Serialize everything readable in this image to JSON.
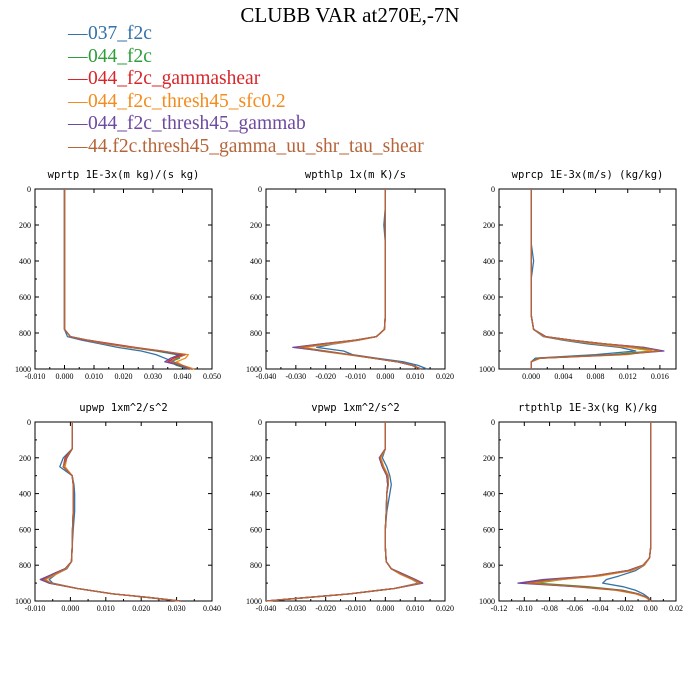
{
  "title": "CLUBB VAR at270E,-7N",
  "legend": [
    {
      "label": "037_f2c",
      "color": "#3572a8"
    },
    {
      "label": "044_f2c",
      "color": "#2e9e3a"
    },
    {
      "label": "044_f2c_gammashear",
      "color": "#d7262b"
    },
    {
      "label": "044_f2c_thresh45_sfc0.2",
      "color": "#f28c1c"
    },
    {
      "label": "044_f2c_thresh45_gammab",
      "color": "#6d4aa0"
    },
    {
      "label": "44.f2c.thresh45_gamma_uu_shr_tau_shear",
      "color": "#b5653a"
    }
  ],
  "chart_data": [
    {
      "type": "line",
      "title": "wprtp  1E-3x(m kg)/(s kg)",
      "xlim": [
        -0.01,
        0.05
      ],
      "ylim": [
        1000,
        0
      ],
      "xticks": [
        "-0.010",
        "0.000",
        "0.010",
        "0.020",
        "0.030",
        "0.040",
        "0.050"
      ],
      "yticks": [
        "0",
        "200",
        "400",
        "600",
        "800",
        "1000"
      ],
      "y": [
        0,
        100,
        200,
        300,
        400,
        500,
        600,
        700,
        780,
        820,
        840,
        860,
        880,
        900,
        920,
        940,
        960,
        980,
        1000
      ],
      "series": [
        {
          "values": [
            0,
            0,
            0,
            0,
            0,
            0,
            0,
            0,
            0,
            0.001,
            0.006,
            0.012,
            0.018,
            0.026,
            0.031,
            0.034,
            0.037,
            0.04,
            0.041
          ]
        },
        {
          "values": [
            0,
            0,
            0,
            0,
            0,
            0,
            0,
            0,
            0,
            0.002,
            0.008,
            0.015,
            0.022,
            0.031,
            0.038,
            0.039,
            0.036,
            0.038,
            0.042
          ]
        },
        {
          "values": [
            0,
            0,
            0,
            0,
            0,
            0,
            0,
            0,
            0,
            0.002,
            0.008,
            0.016,
            0.024,
            0.033,
            0.04,
            0.037,
            0.035,
            0.039,
            0.043
          ]
        },
        {
          "values": [
            0,
            0,
            0,
            0,
            0,
            0,
            0,
            0,
            0,
            0.002,
            0.007,
            0.014,
            0.022,
            0.032,
            0.042,
            0.041,
            0.038,
            0.04,
            0.044
          ]
        },
        {
          "values": [
            0,
            0,
            0,
            0,
            0,
            0,
            0,
            0,
            0,
            0.002,
            0.007,
            0.015,
            0.023,
            0.032,
            0.039,
            0.036,
            0.034,
            0.039,
            0.042
          ]
        },
        {
          "values": [
            0,
            0,
            0,
            0,
            0,
            0,
            0,
            0,
            0,
            0.002,
            0.008,
            0.015,
            0.023,
            0.033,
            0.041,
            0.038,
            0.036,
            0.04,
            0.043
          ]
        }
      ]
    },
    {
      "type": "line",
      "title": "wpthlp  1x(m K)/s",
      "xlim": [
        -0.04,
        0.02
      ],
      "ylim": [
        1000,
        0
      ],
      "xticks": [
        "-0.040",
        "-0.030",
        "-0.020",
        "-0.010",
        "0.000",
        "0.010",
        "0.020"
      ],
      "yticks": [
        "0",
        "200",
        "400",
        "600",
        "800",
        "1000"
      ],
      "y": [
        0,
        100,
        200,
        300,
        400,
        500,
        600,
        700,
        780,
        820,
        840,
        860,
        880,
        900,
        920,
        940,
        960,
        980,
        1000
      ],
      "series": [
        {
          "values": [
            0,
            0,
            -0.0005,
            0,
            0,
            0,
            0,
            0,
            -0.0003,
            -0.003,
            -0.009,
            -0.017,
            -0.023,
            -0.014,
            -0.011,
            -0.003,
            0.006,
            0.011,
            0.014
          ]
        },
        {
          "values": [
            0,
            0,
            0,
            0,
            0,
            0,
            0,
            0,
            -0.0003,
            -0.003,
            -0.01,
            -0.02,
            -0.028,
            -0.02,
            -0.012,
            -0.004,
            0.004,
            0.009,
            0.012
          ]
        },
        {
          "values": [
            0,
            0,
            0,
            0,
            0,
            0,
            0,
            0,
            -0.0003,
            -0.003,
            -0.01,
            -0.021,
            -0.03,
            -0.021,
            -0.012,
            -0.004,
            0.004,
            0.009,
            0.012
          ]
        },
        {
          "values": [
            0,
            0,
            0,
            0,
            0,
            0,
            0,
            0,
            -0.0003,
            -0.003,
            -0.009,
            -0.018,
            -0.027,
            -0.022,
            -0.013,
            -0.004,
            0.004,
            0.009,
            0.012
          ]
        },
        {
          "values": [
            0,
            0,
            0,
            0,
            0,
            0,
            0,
            0,
            -0.0003,
            -0.003,
            -0.01,
            -0.021,
            -0.031,
            -0.021,
            -0.012,
            -0.004,
            0.004,
            0.009,
            0.012
          ]
        },
        {
          "values": [
            0,
            0,
            0,
            0,
            0,
            0,
            0,
            0,
            -0.0003,
            -0.003,
            -0.01,
            -0.02,
            -0.029,
            -0.02,
            -0.012,
            -0.004,
            0.004,
            0.009,
            0.012
          ]
        }
      ]
    },
    {
      "type": "line",
      "title": "wprcp  1E-3x(m/s) (kg/kg)",
      "xlim": [
        -0.004,
        0.018
      ],
      "ylim": [
        1000,
        0
      ],
      "xticks": [
        "0.000",
        "0.004",
        "0.008",
        "0.012",
        "0.016"
      ],
      "yticks": [
        "0",
        "200",
        "400",
        "600",
        "800",
        "1000"
      ],
      "y": [
        0,
        100,
        200,
        300,
        400,
        500,
        600,
        700,
        780,
        820,
        840,
        860,
        880,
        900,
        920,
        940,
        960,
        980,
        1000
      ],
      "series": [
        {
          "values": [
            0,
            0,
            0,
            0,
            0.0003,
            0,
            0,
            0,
            0.0003,
            0.0015,
            0.004,
            0.007,
            0.011,
            0.013,
            0.008,
            0.0005,
            0,
            0,
            0
          ]
        },
        {
          "values": [
            0,
            0,
            0,
            0,
            0,
            0,
            0,
            0,
            0.0003,
            0.0018,
            0.005,
            0.009,
            0.013,
            0.015,
            0.01,
            0.0008,
            0,
            0,
            0
          ]
        },
        {
          "values": [
            0,
            0,
            0,
            0,
            0,
            0,
            0,
            0,
            0.0003,
            0.0018,
            0.005,
            0.009,
            0.014,
            0.016,
            0.011,
            0.001,
            0,
            0,
            0
          ]
        },
        {
          "values": [
            0,
            0,
            0,
            0,
            0,
            0,
            0,
            0,
            0.0003,
            0.0016,
            0.0045,
            0.008,
            0.012,
            0.015,
            0.012,
            0.0012,
            0,
            0,
            0
          ]
        },
        {
          "values": [
            0,
            0,
            0,
            0,
            0,
            0,
            0,
            0,
            0.0003,
            0.0018,
            0.005,
            0.009,
            0.014,
            0.0165,
            0.011,
            0.001,
            0,
            0,
            0
          ]
        },
        {
          "values": [
            0,
            0,
            0,
            0,
            0,
            0,
            0,
            0,
            0.0003,
            0.0017,
            0.005,
            0.009,
            0.0135,
            0.016,
            0.011,
            0.001,
            0,
            0,
            0
          ]
        }
      ]
    },
    {
      "type": "line",
      "title": "upwp  1xm^2/s^2",
      "xlim": [
        -0.01,
        0.04
      ],
      "ylim": [
        1000,
        0
      ],
      "xticks": [
        "-0.010",
        "0.000",
        "0.010",
        "0.020",
        "0.030",
        "0.040"
      ],
      "yticks": [
        "0",
        "200",
        "400",
        "600",
        "800",
        "1000"
      ],
      "y": [
        0,
        100,
        150,
        200,
        250,
        300,
        350,
        400,
        500,
        600,
        700,
        780,
        820,
        850,
        880,
        900,
        930,
        960,
        980,
        1000
      ],
      "series": [
        {
          "values": [
            0.0005,
            0.0005,
            0.0005,
            -0.002,
            -0.003,
            0.0005,
            0.001,
            0.0012,
            0.0012,
            0.0008,
            0.0005,
            0.0003,
            -0.001,
            -0.004,
            -0.006,
            -0.005,
            0.002,
            0.012,
            0.022,
            0.031
          ]
        },
        {
          "values": [
            0.0005,
            0.0005,
            0.0005,
            -0.001,
            -0.002,
            0.0005,
            0.0008,
            0.0008,
            0.0008,
            0.0006,
            0.0005,
            0.0003,
            -0.0015,
            -0.005,
            -0.008,
            -0.006,
            0.002,
            0.012,
            0.022,
            0.031
          ]
        },
        {
          "values": [
            0.0005,
            0.0005,
            0.0005,
            -0.0015,
            -0.002,
            0.0005,
            0.0008,
            0.0008,
            0.0008,
            0.0006,
            0.0005,
            0.0003,
            -0.0015,
            -0.005,
            -0.008,
            -0.006,
            0.002,
            0.012,
            0.022,
            0.031
          ]
        },
        {
          "values": [
            0.0005,
            0.0005,
            0.0005,
            -0.001,
            -0.0015,
            0.0005,
            0.0008,
            0.0008,
            0.0008,
            0.0006,
            0.0005,
            0.0003,
            -0.0012,
            -0.004,
            -0.007,
            -0.0055,
            0.002,
            0.012,
            0.022,
            0.031
          ]
        },
        {
          "values": [
            0.0005,
            0.0005,
            0.0005,
            -0.001,
            -0.002,
            0.0005,
            0.0008,
            0.0008,
            0.0008,
            0.0006,
            0.0005,
            0.0003,
            -0.0015,
            -0.005,
            -0.0085,
            -0.006,
            0.002,
            0.012,
            0.022,
            0.031
          ]
        },
        {
          "values": [
            0.0005,
            0.0005,
            0.0005,
            -0.0012,
            -0.002,
            0.0005,
            0.0008,
            0.0008,
            0.0008,
            0.0006,
            0.0005,
            0.0003,
            -0.0014,
            -0.0045,
            -0.0075,
            -0.0055,
            0.002,
            0.012,
            0.022,
            0.031
          ]
        }
      ]
    },
    {
      "type": "line",
      "title": "vpwp  1xm^2/s^2",
      "xlim": [
        -0.04,
        0.02
      ],
      "ylim": [
        1000,
        0
      ],
      "xticks": [
        "-0.040",
        "-0.030",
        "-0.020",
        "-0.010",
        "0.000",
        "0.010",
        "0.020"
      ],
      "yticks": [
        "0",
        "200",
        "400",
        "600",
        "800",
        "1000"
      ],
      "y": [
        0,
        100,
        150,
        200,
        250,
        300,
        350,
        400,
        500,
        600,
        700,
        780,
        820,
        850,
        880,
        900,
        930,
        960,
        980,
        1000
      ],
      "series": [
        {
          "values": [
            0,
            0,
            0,
            -0.001,
            0.0005,
            0.0015,
            0.002,
            0.0015,
            0.0005,
            0,
            0,
            0.0003,
            0.002,
            0.005,
            0.009,
            0.011,
            0.003,
            -0.012,
            -0.026,
            -0.04
          ]
        },
        {
          "values": [
            0,
            0,
            0,
            -0.002,
            -0.001,
            0.0005,
            0.0008,
            0.0005,
            0.0003,
            0,
            0,
            0.0003,
            0.002,
            0.006,
            0.01,
            0.012,
            0.003,
            -0.012,
            -0.026,
            -0.04
          ]
        },
        {
          "values": [
            0,
            0,
            0,
            -0.002,
            -0.001,
            0.0005,
            0.0008,
            0.0005,
            0.0003,
            0,
            0,
            0.0003,
            0.002,
            0.006,
            0.01,
            0.0125,
            0.003,
            -0.012,
            -0.026,
            -0.04
          ]
        },
        {
          "values": [
            0,
            0,
            0,
            -0.0015,
            -0.0005,
            0.001,
            0.001,
            0.0005,
            0.0003,
            0,
            0,
            0.0003,
            0.002,
            0.005,
            0.009,
            0.0115,
            0.003,
            -0.012,
            -0.026,
            -0.04
          ]
        },
        {
          "values": [
            0,
            0,
            0,
            -0.002,
            -0.001,
            0.0005,
            0.0008,
            0.0005,
            0.0003,
            0,
            0,
            0.0003,
            0.002,
            0.006,
            0.01,
            0.0125,
            0.003,
            -0.012,
            -0.026,
            -0.04
          ]
        },
        {
          "values": [
            0,
            0,
            0,
            -0.0018,
            -0.0008,
            0.0007,
            0.001,
            0.0005,
            0.0003,
            0,
            0,
            0.0003,
            0.002,
            0.0055,
            0.0095,
            0.012,
            0.003,
            -0.012,
            -0.026,
            -0.04
          ]
        }
      ]
    },
    {
      "type": "line",
      "title": "rtpthlp  1E-3x(kg K)/kg",
      "xlim": [
        -0.12,
        0.02
      ],
      "ylim": [
        1000,
        0
      ],
      "xticks": [
        "-0.12",
        "-0.10",
        "-0.08",
        "-0.06",
        "-0.04",
        "-0.02",
        "0.00",
        "0.02"
      ],
      "yticks": [
        "0",
        "200",
        "400",
        "600",
        "800",
        "1000"
      ],
      "y": [
        0,
        100,
        200,
        300,
        400,
        500,
        600,
        700,
        760,
        800,
        830,
        860,
        880,
        900,
        920,
        940,
        960,
        980,
        1000
      ],
      "series": [
        {
          "values": [
            0,
            0,
            0,
            0,
            0,
            0,
            0,
            0,
            -0.001,
            -0.005,
            -0.012,
            -0.025,
            -0.035,
            -0.038,
            -0.022,
            -0.012,
            -0.006,
            -0.002,
            0
          ]
        },
        {
          "values": [
            0,
            0,
            0,
            0,
            0,
            0,
            0,
            0,
            -0.001,
            -0.006,
            -0.018,
            -0.045,
            -0.07,
            -0.09,
            -0.05,
            -0.022,
            -0.01,
            -0.003,
            0
          ]
        },
        {
          "values": [
            0,
            0,
            0,
            0,
            0,
            0,
            0,
            0,
            -0.001,
            -0.006,
            -0.018,
            -0.045,
            -0.08,
            -0.1,
            -0.055,
            -0.024,
            -0.01,
            -0.003,
            0
          ]
        },
        {
          "values": [
            0,
            0,
            0,
            0,
            0,
            0,
            0,
            0,
            -0.001,
            -0.005,
            -0.015,
            -0.04,
            -0.07,
            -0.095,
            -0.06,
            -0.028,
            -0.012,
            -0.004,
            0
          ]
        },
        {
          "values": [
            0,
            0,
            0,
            0,
            0,
            0,
            0,
            0,
            -0.001,
            -0.006,
            -0.018,
            -0.045,
            -0.085,
            -0.105,
            -0.058,
            -0.025,
            -0.01,
            -0.003,
            0
          ]
        },
        {
          "values": [
            0,
            0,
            0,
            0,
            0,
            0,
            0,
            0,
            -0.001,
            -0.006,
            -0.017,
            -0.044,
            -0.076,
            -0.098,
            -0.056,
            -0.025,
            -0.01,
            -0.003,
            0
          ]
        }
      ]
    }
  ]
}
